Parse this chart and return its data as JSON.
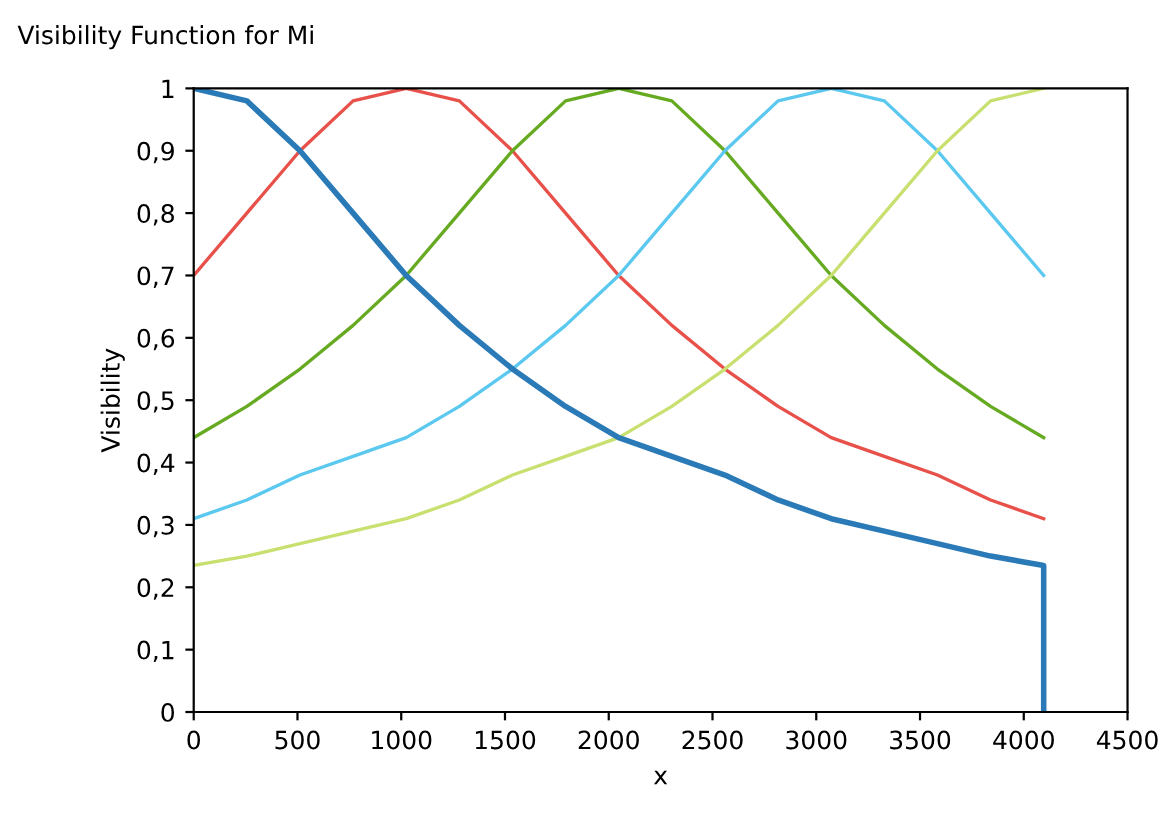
{
  "chart_data": {
    "type": "line",
    "title": "Visibility Function for Mi",
    "xlabel": "x",
    "ylabel": "Visibility",
    "xlim": [
      0,
      4500
    ],
    "xticks": [
      0,
      500,
      1000,
      1500,
      2000,
      2500,
      3000,
      3500,
      4000,
      4500
    ],
    "ylim": [
      0,
      1
    ],
    "yticks": [
      {
        "value": 0,
        "label": "0"
      },
      {
        "value": 0.1,
        "label": "0,1"
      },
      {
        "value": 0.2,
        "label": "0,2"
      },
      {
        "value": 0.3,
        "label": "0,3"
      },
      {
        "value": 0.4,
        "label": "0,4"
      },
      {
        "value": 0.5,
        "label": "0,5"
      },
      {
        "value": 0.6,
        "label": "0,6"
      },
      {
        "value": 0.7,
        "label": "0,7"
      },
      {
        "value": 0.8,
        "label": "0,8"
      },
      {
        "value": 0.9,
        "label": "0,9"
      },
      {
        "value": 1,
        "label": "1"
      }
    ],
    "grid": false,
    "legend": false,
    "marker": "none",
    "line_style": "solid",
    "series": [
      {
        "color": "#e8504a",
        "x": [
          0,
          256,
          512,
          768,
          1024,
          1280,
          1536,
          1792,
          2048,
          2304,
          2560,
          2816,
          3072,
          3328,
          3584,
          3840,
          4096
        ],
        "values": [
          0.7,
          0.8,
          0.9,
          0.98,
          1.0,
          0.98,
          0.9,
          0.8,
          0.7,
          0.62,
          0.55,
          0.49,
          0.44,
          0.41,
          0.38,
          0.34,
          0.31
        ]
      },
      {
        "color": "#66aa22",
        "x": [
          0,
          256,
          512,
          768,
          1024,
          1280,
          1536,
          1792,
          2048,
          2304,
          2560,
          2816,
          3072,
          3328,
          3584,
          3840,
          4096
        ],
        "values": [
          0.44,
          0.49,
          0.55,
          0.62,
          0.7,
          0.8,
          0.9,
          0.98,
          1.0,
          0.98,
          0.9,
          0.8,
          0.7,
          0.62,
          0.55,
          0.49,
          0.44
        ]
      },
      {
        "color": "#5bc8f0",
        "x": [
          0,
          256,
          512,
          768,
          1024,
          1280,
          1536,
          1792,
          2048,
          2304,
          2560,
          2816,
          3072,
          3328,
          3584,
          3840,
          4096
        ],
        "values": [
          0.31,
          0.34,
          0.38,
          0.41,
          0.44,
          0.49,
          0.55,
          0.62,
          0.7,
          0.8,
          0.9,
          0.98,
          1.0,
          0.98,
          0.9,
          0.8,
          0.7
        ]
      },
      {
        "color": "#c8e070",
        "x": [
          0,
          256,
          512,
          768,
          1024,
          1280,
          1536,
          1792,
          2048,
          2304,
          2560,
          2816,
          3072,
          3328,
          3584,
          3840,
          4096
        ],
        "values": [
          0.235,
          0.25,
          0.27,
          0.29,
          0.31,
          0.34,
          0.38,
          0.41,
          0.44,
          0.49,
          0.55,
          0.62,
          0.7,
          0.8,
          0.9,
          0.98,
          1.0
        ]
      },
      {
        "color": "#2a7ab8",
        "x": [
          0,
          256,
          512,
          768,
          1024,
          1280,
          1536,
          1792,
          2048,
          2304,
          2560,
          2816,
          3072,
          3328,
          3584,
          3840,
          4096,
          4096
        ],
        "values": [
          1.0,
          0.98,
          0.9,
          0.8,
          0.7,
          0.62,
          0.55,
          0.49,
          0.44,
          0.41,
          0.38,
          0.34,
          0.31,
          0.29,
          0.27,
          0.25,
          0.235,
          0
        ]
      }
    ]
  }
}
